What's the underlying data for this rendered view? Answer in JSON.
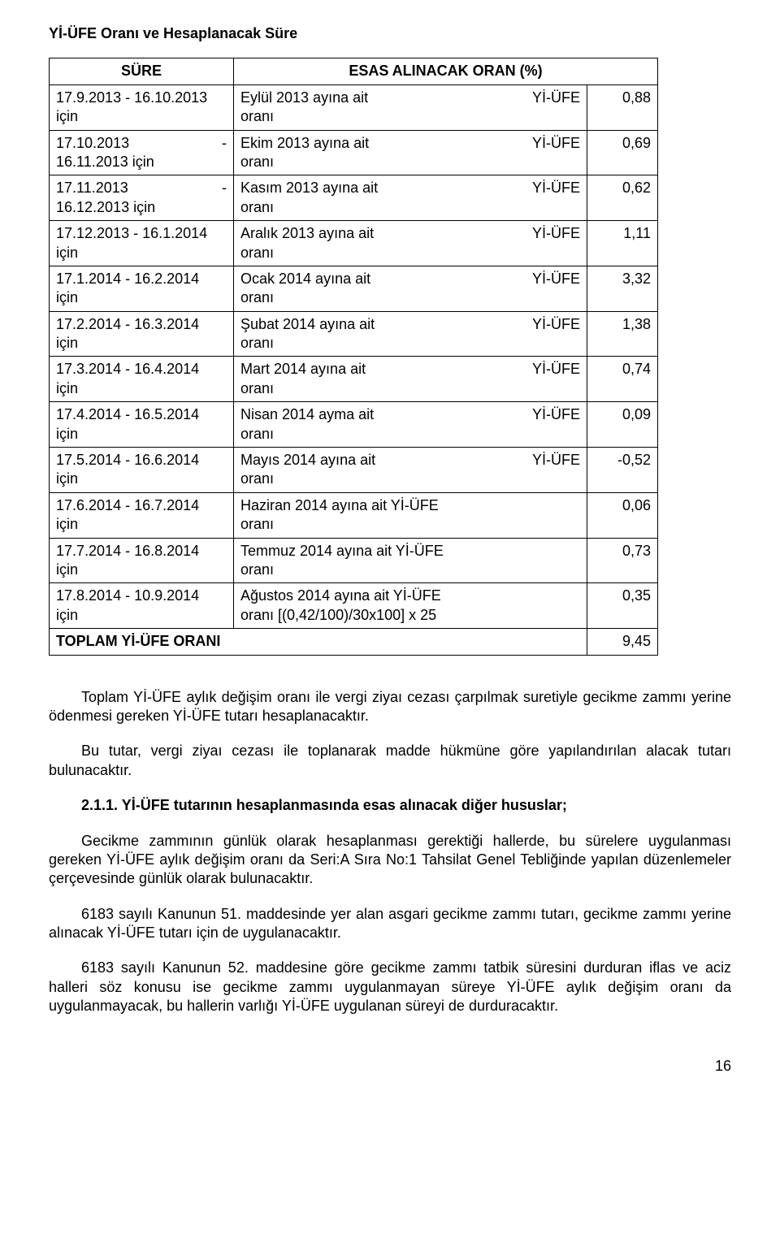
{
  "heading": "Yİ-ÜFE Oranı ve Hesaplanacak Süre",
  "table": {
    "header_sure": "SÜRE",
    "header_oran": "ESAS ALINACAK ORAN (%)",
    "rows": [
      {
        "sure_l1a": "17.9.2013 - 16.10.2013",
        "sure_l1b": "",
        "sure_l2": "için",
        "desc_a": "Eylül 2013 ayına ait",
        "desc_b": "Yİ-ÜFE",
        "desc2": "oranı",
        "val": "0,88"
      },
      {
        "sure_l1a": "17.10.2013",
        "sure_l1b": "-",
        "sure_l2": "16.11.2013 için",
        "desc_a": "Ekim 2013 ayına ait",
        "desc_b": "Yİ-ÜFE",
        "desc2": "oranı",
        "val": "0,69"
      },
      {
        "sure_l1a": "17.11.2013",
        "sure_l1b": "-",
        "sure_l2": "16.12.2013 için",
        "desc_a": "Kasım 2013 ayına ait",
        "desc_b": "Yİ-ÜFE",
        "desc2": "oranı",
        "val": "0,62"
      },
      {
        "sure_l1a": "17.12.2013 - 16.1.2014",
        "sure_l1b": "",
        "sure_l2": "için",
        "desc_a": "Aralık 2013 ayına ait",
        "desc_b": "Yİ-ÜFE",
        "desc2": "oranı",
        "val": "1,11"
      },
      {
        "sure_l1a": "17.1.2014 - 16.2.2014",
        "sure_l1b": "",
        "sure_l2": "için",
        "desc_a": "Ocak 2014 ayına ait",
        "desc_b": "Yİ-ÜFE",
        "desc2": "oranı",
        "val": "3,32"
      },
      {
        "sure_l1a": "17.2.2014 - 16.3.2014",
        "sure_l1b": "",
        "sure_l2": "için",
        "desc_a": "Şubat 2014 ayına ait",
        "desc_b": "Yİ-ÜFE",
        "desc2": "oranı",
        "val": "1,38"
      },
      {
        "sure_l1a": "17.3.2014 - 16.4.2014",
        "sure_l1b": "",
        "sure_l2": "için",
        "desc_a": "Mart 2014 ayına ait",
        "desc_b": "Yİ-ÜFE",
        "desc2": "oranı",
        "val": "0,74"
      },
      {
        "sure_l1a": "17.4.2014 - 16.5.2014",
        "sure_l1b": "",
        "sure_l2": "için",
        "desc_a": "Nisan 2014 ayma ait",
        "desc_b": "Yİ-ÜFE",
        "desc2": "oranı",
        "val": "0,09"
      },
      {
        "sure_l1a": "17.5.2014 - 16.6.2014",
        "sure_l1b": "",
        "sure_l2": "için",
        "desc_a": "Mayıs 2014 ayına ait",
        "desc_b": "Yİ-ÜFE",
        "desc2": "oranı",
        "val": "-0,52"
      },
      {
        "sure_l1a": "17.6.2014 - 16.7.2014",
        "sure_l1b": "",
        "sure_l2": "için",
        "desc_a": "Haziran 2014 ayına ait Yİ-ÜFE",
        "desc_b": "",
        "desc2": "oranı",
        "val": "0,06"
      },
      {
        "sure_l1a": "17.7.2014 - 16.8.2014",
        "sure_l1b": "",
        "sure_l2": "için",
        "desc_a": "Temmuz 2014 ayına ait Yİ-ÜFE",
        "desc_b": "",
        "desc2": "oranı",
        "val": "0,73"
      },
      {
        "sure_l1a": "17.8.2014 - 10.9.2014",
        "sure_l1b": "",
        "sure_l2": "için",
        "desc_a": "Ağustos 2014 ayına ait Yİ-ÜFE",
        "desc_b": "",
        "desc2": "oranı [(0,42/100)/30x100] x 25",
        "val": "0,35"
      }
    ],
    "total_label": "TOPLAM Yİ-ÜFE ORANI",
    "total_val": "9,45"
  },
  "paras": {
    "p1": "Toplam Yİ-ÜFE aylık değişim oranı ile vergi ziyaı cezası çarpılmak suretiyle gecikme zammı yerine ödenmesi gereken Yİ-ÜFE tutarı hesaplanacaktır.",
    "p2": "Bu tutar, vergi ziyaı cezası ile toplanarak madde hükmüne göre yapılandırılan alacak tutarı bulunacaktır.",
    "p3": "2.1.1. Yİ-ÜFE tutarının hesaplanmasında esas alınacak diğer hususlar;",
    "p4": "Gecikme zammının günlük olarak hesaplanması gerektiği hallerde, bu sürelere uygulanması gereken Yİ-ÜFE aylık değişim oranı da Seri:A Sıra No:1 Tahsilat Genel Tebliğinde yapılan düzenlemeler çerçevesinde günlük olarak bulunacaktır.",
    "p5": "6183 sayılı Kanunun 51. maddesinde yer alan asgari gecikme zammı tutarı, gecikme zammı yerine alınacak Yİ-ÜFE tutarı için de uygulanacaktır.",
    "p6": "6183 sayılı Kanunun 52. maddesine göre gecikme zammı tatbik süresini durduran iflas ve aciz halleri söz konusu ise gecikme zammı uygulanmayan süreye Yİ-ÜFE aylık değişim oranı da uygulanmayacak, bu hallerin varlığı Yİ-ÜFE uygulanan süreyi de durduracaktır."
  },
  "page_num": "16"
}
